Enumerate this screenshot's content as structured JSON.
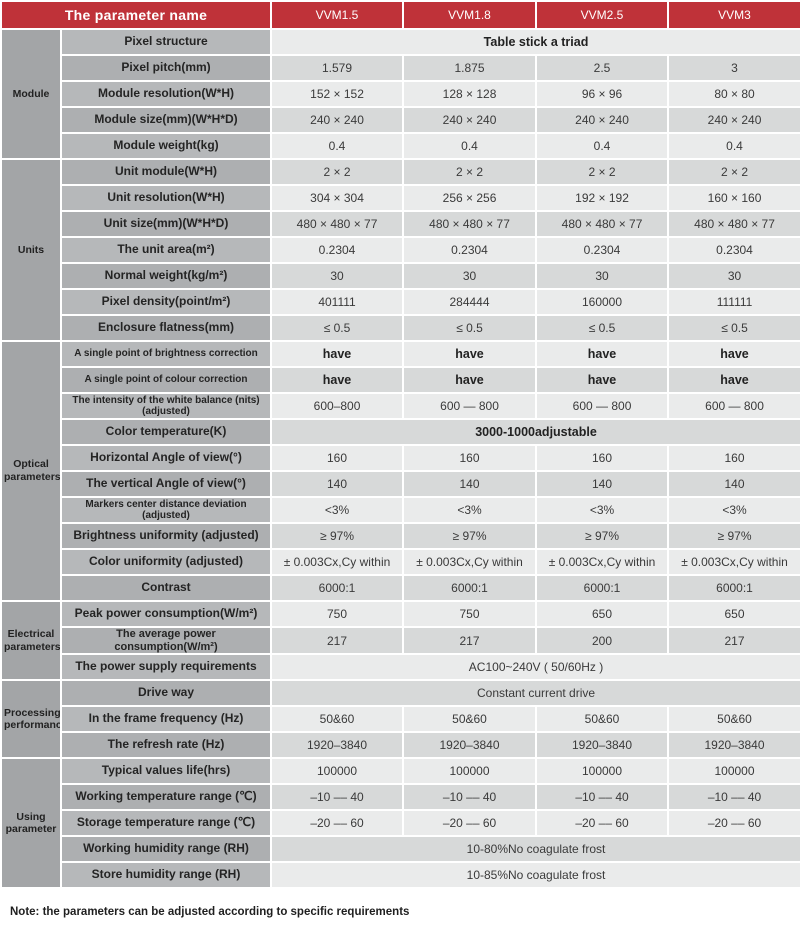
{
  "header": {
    "param_label": "The parameter name",
    "model_columns": [
      "VVM1.5",
      "VVM1.8",
      "VVM2.5",
      "VVM3"
    ]
  },
  "groups": [
    {
      "label": "Module",
      "rows": [
        {
          "param": "Pixel structure",
          "span_value": "Table stick a triad",
          "bold": true
        },
        {
          "param": "Pixel pitch(mm)",
          "values": [
            "1.579",
            "1.875",
            "2.5",
            "3"
          ]
        },
        {
          "param": "Module resolution(W*H)",
          "values": [
            "152 × 152",
            "128 × 128",
            "96 × 96",
            "80 × 80"
          ]
        },
        {
          "param": "Module size(mm)(W*H*D)",
          "values": [
            "240 × 240",
            "240 × 240",
            "240 × 240",
            "240 × 240"
          ]
        },
        {
          "param": "Module weight(kg)",
          "values": [
            "0.4",
            "0.4",
            "0.4",
            "0.4"
          ]
        }
      ]
    },
    {
      "label": "Units",
      "rows": [
        {
          "param": "Unit module(W*H)",
          "values": [
            "2 × 2",
            "2 × 2",
            "2 × 2",
            "2 × 2"
          ]
        },
        {
          "param": "Unit resolution(W*H)",
          "values": [
            "304 × 304",
            "256 × 256",
            "192 × 192",
            "160 × 160"
          ]
        },
        {
          "param": "Unit size(mm)(W*H*D)",
          "values": [
            "480 × 480 × 77",
            "480 × 480 × 77",
            "480 × 480 × 77",
            "480 × 480 × 77"
          ]
        },
        {
          "param": "The unit area(m²)",
          "values": [
            "0.2304",
            "0.2304",
            "0.2304",
            "0.2304"
          ]
        },
        {
          "param": "Normal weight(kg/m²)",
          "values": [
            "30",
            "30",
            "30",
            "30"
          ]
        },
        {
          "param": "Pixel density(point/m²)",
          "values": [
            "401111",
            "284444",
            "160000",
            "111111"
          ]
        },
        {
          "param": "Enclosure flatness(mm)",
          "values": [
            "≤ 0.5",
            "≤ 0.5",
            "≤ 0.5",
            "≤ 0.5"
          ]
        }
      ]
    },
    {
      "label": "Optical parameters",
      "rows": [
        {
          "param": "A single point of brightness correction",
          "small": true,
          "bold": true,
          "values": [
            "have",
            "have",
            "have",
            "have"
          ]
        },
        {
          "param": "A single point of colour correction",
          "small": true,
          "bold": true,
          "values": [
            "have",
            "have",
            "have",
            "have"
          ]
        },
        {
          "param": "The intensity of the white balance (nits) (adjusted)",
          "small": true,
          "values": [
            "600–800",
            "600 — 800",
            "600 — 800",
            "600 — 800"
          ]
        },
        {
          "param": "Color temperature(K)",
          "span_value": "3000-1000adjustable",
          "bold": true
        },
        {
          "param": "Horizontal Angle of view(°)",
          "values": [
            "160",
            "160",
            "160",
            "160"
          ]
        },
        {
          "param": "The vertical Angle of view(°)",
          "values": [
            "140",
            "140",
            "140",
            "140"
          ]
        },
        {
          "param": "Markers center distance deviation (adjusted)",
          "small": true,
          "values": [
            "<3%",
            "<3%",
            "<3%",
            "<3%"
          ]
        },
        {
          "param": "Brightness uniformity (adjusted)",
          "values": [
            "≥ 97%",
            "≥ 97%",
            "≥ 97%",
            "≥ 97%"
          ]
        },
        {
          "param": "Color uniformity (adjusted)",
          "values": [
            "± 0.003Cx,Cy within",
            "± 0.003Cx,Cy within",
            "± 0.003Cx,Cy within",
            "± 0.003Cx,Cy within"
          ]
        },
        {
          "param": "Contrast",
          "values": [
            "6000:1",
            "6000:1",
            "6000:1",
            "6000:1"
          ]
        }
      ]
    },
    {
      "label": "Electrical parameters",
      "rows": [
        {
          "param": "Peak power consumption(W/m²)",
          "values": [
            "750",
            "750",
            "650",
            "650"
          ]
        },
        {
          "param": "The average power consumption(W/m²)",
          "mid": true,
          "values": [
            "217",
            "217",
            "200",
            "217"
          ]
        },
        {
          "param": "The power supply requirements",
          "span_value": "AC100~240V ( 50/60Hz )"
        }
      ]
    },
    {
      "label": "Processing performance",
      "rows": [
        {
          "param": "Drive way",
          "span_value": "Constant current drive"
        },
        {
          "param": "In the frame frequency (Hz)",
          "values": [
            "50&60",
            "50&60",
            "50&60",
            "50&60"
          ]
        },
        {
          "param": "The refresh rate (Hz)",
          "values": [
            "1920–3840",
            "1920–3840",
            "1920–3840",
            "1920–3840"
          ]
        }
      ]
    },
    {
      "label": "Using parameter",
      "rows": [
        {
          "param": "Typical values life(hrs)",
          "values": [
            "100000",
            "100000",
            "100000",
            "100000"
          ]
        },
        {
          "param": "Working temperature range (℃)",
          "values": [
            "–10 –– 40",
            "–10 –– 40",
            "–10 –– 40",
            "–10 –– 40"
          ]
        },
        {
          "param": "Storage temperature range (℃)",
          "values": [
            "–20 –– 60",
            "–20 –– 60",
            "–20 –– 60",
            "–20 –– 60"
          ]
        },
        {
          "param": "Working humidity range (RH)",
          "span_value": "10-80%No coagulate frost"
        },
        {
          "param": "Store humidity range (RH)",
          "span_value": "10-85%No coagulate frost"
        }
      ]
    }
  ],
  "note": "Note: the parameters can be adjusted according to specific requirements",
  "colors": {
    "header_red": "#bf3239",
    "group_gray": "#a3a5a7",
    "param_gray_even": "#b6b8ba",
    "param_gray_odd": "#adafb1",
    "value_light": "#eaebeb",
    "value_dark": "#d7d9d9"
  }
}
